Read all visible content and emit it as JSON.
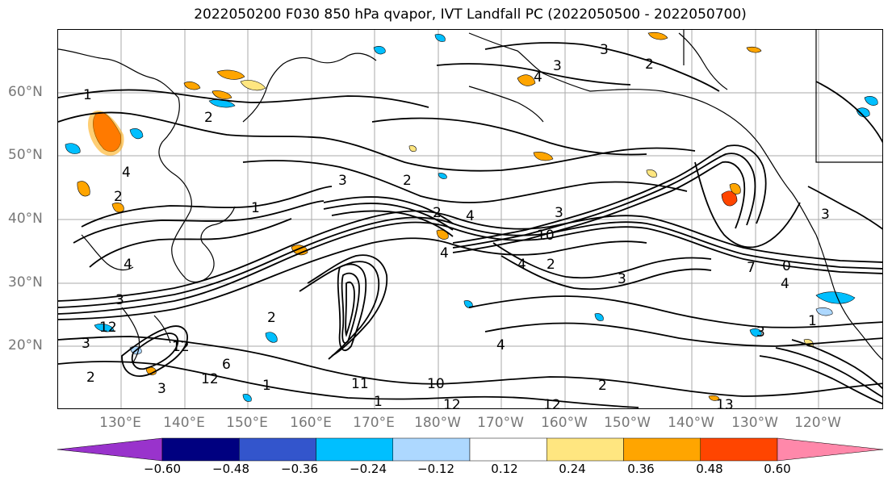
{
  "title": "2022050200 F030 850 hPa qvapor, IVT Landfall PC (2022050500 - 2022050700)",
  "lat_labels": [
    "60°N",
    "50°N",
    "40°N",
    "30°N",
    "20°N"
  ],
  "lon_labels": [
    "130°E",
    "140°E",
    "150°E",
    "160°E",
    "170°E",
    "180°W",
    "170°W",
    "160°W",
    "150°W",
    "140°W",
    "130°W",
    "120°W"
  ],
  "colorbar": {
    "tick_labels": [
      "−0.60",
      "−0.48",
      "−0.36",
      "−0.24",
      "−0.12",
      "0.12",
      "0.24",
      "0.36",
      "0.48",
      "0.60"
    ],
    "colors": [
      "#9933cc",
      "#000080",
      "#3355cc",
      "#00bfff",
      "#add8ff",
      "#ffffff",
      "#ffe680",
      "#ffa500",
      "#ff4500",
      "#b22222",
      "#ff88aa"
    ]
  },
  "contour_labels": [
    "1",
    "2",
    "4",
    "3",
    "2",
    "3",
    "4",
    "3",
    "2",
    "4",
    "2",
    "3",
    "3",
    "4",
    "10",
    "4",
    "2",
    "1",
    "3",
    "1",
    "3",
    "12",
    "4",
    "3",
    "2",
    "11",
    "12",
    "10",
    "12",
    "12",
    "13",
    "12",
    "3",
    "2",
    "0",
    "4",
    "3",
    "1",
    "2",
    "4",
    "1",
    "2",
    "6",
    "7"
  ],
  "map_colors": {
    "contour": "#000000",
    "coast": "#000000",
    "grid": "#aaaaaa",
    "axis_labels": "#777777"
  }
}
